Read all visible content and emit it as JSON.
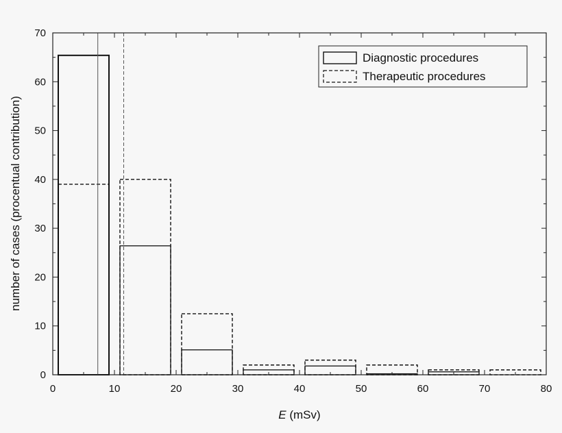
{
  "chart_data": {
    "type": "bar",
    "x_unit_label_italic": "E",
    "xlabel": " (mSv)",
    "ylabel": "number of cases (procentual contribution)",
    "xlim": [
      0,
      80
    ],
    "ylim": [
      0,
      70
    ],
    "xticks": [
      0,
      10,
      20,
      30,
      40,
      50,
      60,
      70,
      80
    ],
    "yticks": [
      0,
      10,
      20,
      30,
      40,
      50,
      60,
      70
    ],
    "grid": false,
    "legend_position": "top-right",
    "bins": [
      [
        0,
        10
      ],
      [
        10,
        20
      ],
      [
        20,
        30
      ],
      [
        30,
        40
      ],
      [
        40,
        50
      ],
      [
        50,
        60
      ],
      [
        60,
        70
      ],
      [
        70,
        80
      ]
    ],
    "series": [
      {
        "name": "Diagnostic procedures",
        "style": "solid",
        "values": [
          65.4,
          26.4,
          5.1,
          1.0,
          1.8,
          0.2,
          0.6,
          0.0
        ]
      },
      {
        "name": "Therapeutic procedures",
        "style": "dashed",
        "values": [
          39.0,
          40.0,
          12.5,
          2.0,
          3.0,
          2.0,
          1.0,
          1.0
        ]
      }
    ],
    "vertical_lines": [
      {
        "x": 7.3,
        "style": "solid"
      },
      {
        "x": 11.5,
        "style": "dashed"
      }
    ]
  }
}
